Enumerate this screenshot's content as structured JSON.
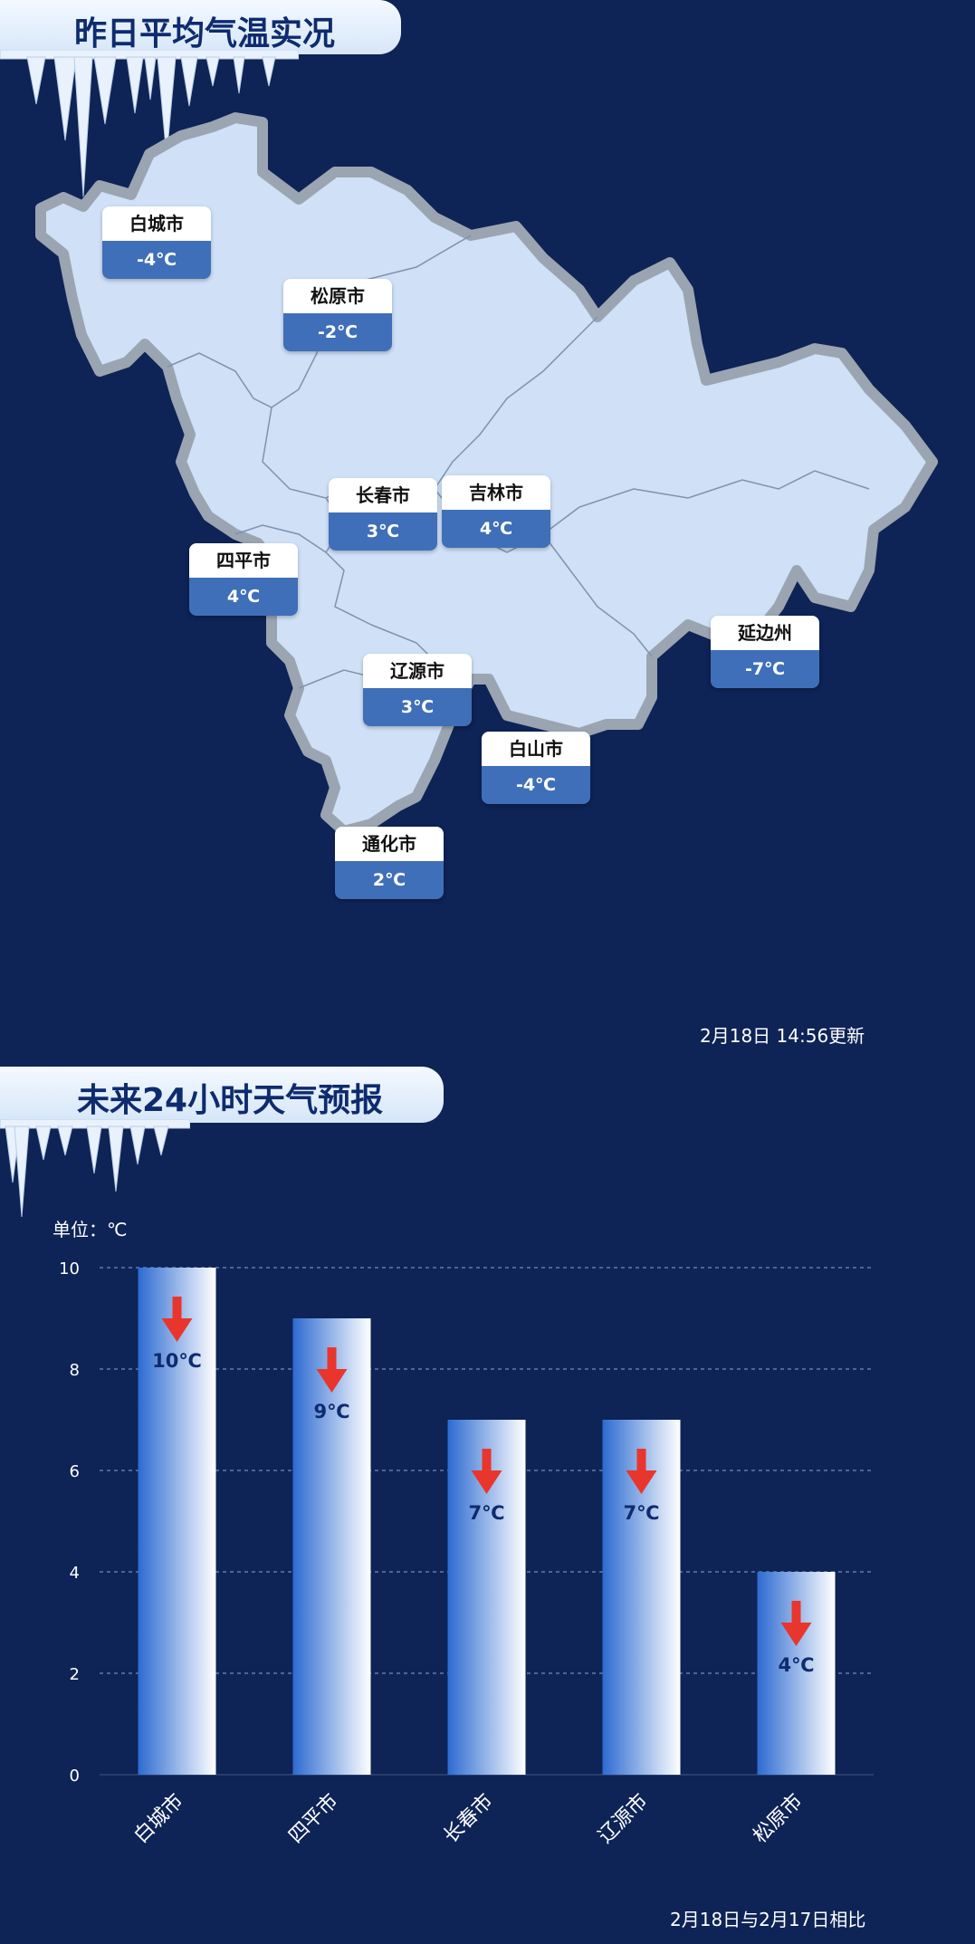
{
  "map_section": {
    "title": "昨日平均气温实况",
    "updated": "2月18日  14:56更新",
    "cities": [
      {
        "name": "白城市",
        "temp": "-4℃"
      },
      {
        "name": "松原市",
        "temp": "-2℃"
      },
      {
        "name": "长春市",
        "temp": "3℃"
      },
      {
        "name": "吉林市",
        "temp": "4℃"
      },
      {
        "name": "四平市",
        "temp": "4℃"
      },
      {
        "name": "辽源市",
        "temp": "3℃"
      },
      {
        "name": "延边州",
        "temp": "-7℃"
      },
      {
        "name": "白山市",
        "temp": "-4℃"
      },
      {
        "name": "通化市",
        "temp": "2℃"
      }
    ],
    "colors": {
      "land": "#cfe0f7",
      "border": "#9aa5b1",
      "label_temp_bg": "#3f6fb8"
    }
  },
  "forecast_section": {
    "title": "未来24小时天气预报",
    "unit_label": "单位：℃",
    "footnote": "2月18日与2月17日相比",
    "arrow_icon": "down-arrow-icon",
    "arrow_color": "#e8362d"
  },
  "chart_data": {
    "type": "bar",
    "categories": [
      "白城市",
      "四平市",
      "长春市",
      "辽源市",
      "松原市"
    ],
    "values": [
      10,
      9,
      7,
      7,
      4
    ],
    "data_labels": [
      "10℃",
      "9℃",
      "7℃",
      "7℃",
      "4℃"
    ],
    "yticks": [
      "0",
      "2",
      "4",
      "6",
      "8",
      "10"
    ],
    "ylim": [
      0,
      10
    ],
    "grid": true,
    "bar_gradient": [
      "#2d6bd1",
      "#ffffff"
    ]
  }
}
